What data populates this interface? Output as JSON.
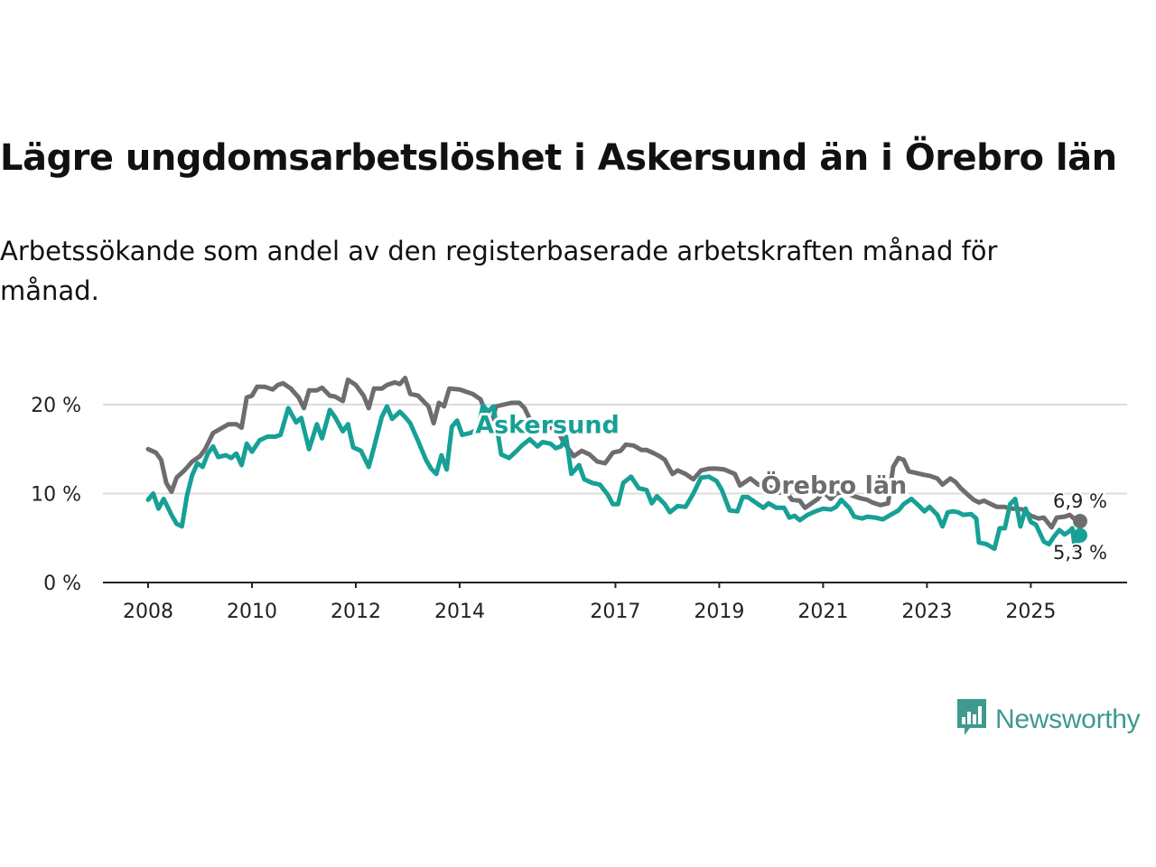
{
  "title": "Lägre ungdomsarbetslöshet i Askersund än i Örebro län",
  "subtitle": "Arbetssökande som andel av den registerbaserade arbetskraften månad för månad.",
  "brand": {
    "name": "Newsworthy",
    "color": "#3d9a8d",
    "icon": "newsworthy-chart-icon"
  },
  "chart_data": {
    "type": "line",
    "title": "Lägre ungdomsarbetslöshet i Askersund än i Örebro län",
    "xlabel": "",
    "ylabel": "",
    "xlim": [
      2008,
      2025.95
    ],
    "ylim": [
      0,
      20
    ],
    "grid": true,
    "y_ticks": [
      {
        "value": 0,
        "label": "0 %"
      },
      {
        "value": 10,
        "label": "10 %"
      },
      {
        "value": 20,
        "label": "20 %"
      }
    ],
    "x_ticks": [
      {
        "value": 2008,
        "label": "2008"
      },
      {
        "value": 2010,
        "label": "2010"
      },
      {
        "value": 2012,
        "label": "2012"
      },
      {
        "value": 2014,
        "label": "2014"
      },
      {
        "value": 2017,
        "label": "2017"
      },
      {
        "value": 2019,
        "label": "2019"
      },
      {
        "value": 2021,
        "label": "2021"
      },
      {
        "value": 2023,
        "label": "2023"
      },
      {
        "value": 2025,
        "label": "2025"
      }
    ],
    "series": [
      {
        "name": "Örebro län",
        "color": "#6d6d70",
        "label_x": 2019.8,
        "label_y": 10,
        "end_label": "6,9 %",
        "points": [
          [
            2008.0,
            15.0
          ],
          [
            2008.15,
            14.6
          ],
          [
            2008.25,
            13.8
          ],
          [
            2008.35,
            11.2
          ],
          [
            2008.45,
            10.2
          ],
          [
            2008.55,
            11.8
          ],
          [
            2008.7,
            12.6
          ],
          [
            2008.85,
            13.6
          ],
          [
            2009.0,
            14.2
          ],
          [
            2009.1,
            15.0
          ],
          [
            2009.25,
            16.8
          ],
          [
            2009.4,
            17.3
          ],
          [
            2009.55,
            17.8
          ],
          [
            2009.7,
            17.8
          ],
          [
            2009.8,
            17.4
          ],
          [
            2009.9,
            20.8
          ],
          [
            2010.0,
            21.0
          ],
          [
            2010.1,
            22.0
          ],
          [
            2010.25,
            22.0
          ],
          [
            2010.4,
            21.7
          ],
          [
            2010.5,
            22.2
          ],
          [
            2010.6,
            22.4
          ],
          [
            2010.75,
            21.8
          ],
          [
            2010.9,
            20.8
          ],
          [
            2011.0,
            19.6
          ],
          [
            2011.1,
            21.6
          ],
          [
            2011.25,
            21.6
          ],
          [
            2011.35,
            21.9
          ],
          [
            2011.5,
            21.0
          ],
          [
            2011.6,
            20.9
          ],
          [
            2011.75,
            20.4
          ],
          [
            2011.85,
            22.8
          ],
          [
            2012.0,
            22.2
          ],
          [
            2012.15,
            21.0
          ],
          [
            2012.25,
            19.6
          ],
          [
            2012.35,
            21.8
          ],
          [
            2012.5,
            21.8
          ],
          [
            2012.6,
            22.2
          ],
          [
            2012.75,
            22.5
          ],
          [
            2012.85,
            22.3
          ],
          [
            2012.95,
            23.0
          ],
          [
            2013.05,
            21.2
          ],
          [
            2013.2,
            21.0
          ],
          [
            2013.3,
            20.4
          ],
          [
            2013.4,
            19.8
          ],
          [
            2013.5,
            17.9
          ],
          [
            2013.6,
            20.2
          ],
          [
            2013.7,
            19.8
          ],
          [
            2013.8,
            21.8
          ],
          [
            2014.0,
            21.7
          ],
          [
            2014.15,
            21.4
          ],
          [
            2014.25,
            21.2
          ],
          [
            2014.4,
            20.6
          ],
          [
            2014.5,
            19.2
          ],
          [
            2014.6,
            17.6
          ],
          [
            2014.7,
            19.8
          ],
          [
            2014.85,
            20.0
          ],
          [
            2015.0,
            20.2
          ],
          [
            2015.15,
            20.2
          ],
          [
            2015.25,
            19.6
          ],
          [
            2015.35,
            18.4
          ],
          [
            2015.5,
            18.0
          ],
          [
            2015.7,
            17.6
          ],
          [
            2015.9,
            16.9
          ],
          [
            2016.0,
            15.8
          ],
          [
            2016.2,
            14.2
          ],
          [
            2016.35,
            14.8
          ],
          [
            2016.5,
            14.4
          ],
          [
            2016.65,
            13.6
          ],
          [
            2016.8,
            13.4
          ],
          [
            2016.95,
            14.6
          ],
          [
            2017.1,
            14.8
          ],
          [
            2017.2,
            15.5
          ],
          [
            2017.35,
            15.4
          ],
          [
            2017.5,
            14.9
          ],
          [
            2017.6,
            14.9
          ],
          [
            2017.75,
            14.5
          ],
          [
            2017.85,
            14.2
          ],
          [
            2017.95,
            13.8
          ],
          [
            2018.1,
            12.2
          ],
          [
            2018.2,
            12.6
          ],
          [
            2018.35,
            12.2
          ],
          [
            2018.5,
            11.6
          ],
          [
            2018.65,
            12.6
          ],
          [
            2018.8,
            12.8
          ],
          [
            2018.95,
            12.8
          ],
          [
            2019.1,
            12.7
          ],
          [
            2019.3,
            12.2
          ],
          [
            2019.4,
            10.9
          ],
          [
            2019.5,
            11.3
          ],
          [
            2019.6,
            11.7
          ],
          [
            2019.75,
            11.0
          ],
          [
            2019.9,
            10.8
          ],
          [
            2020.05,
            10.6
          ],
          [
            2020.15,
            10.1
          ],
          [
            2020.3,
            10.1
          ],
          [
            2020.4,
            9.3
          ],
          [
            2020.55,
            9.2
          ],
          [
            2020.65,
            8.4
          ],
          [
            2020.8,
            9.0
          ],
          [
            2020.9,
            9.4
          ],
          [
            2021.0,
            10.2
          ],
          [
            2021.15,
            9.4
          ],
          [
            2021.25,
            10.0
          ],
          [
            2021.4,
            10.2
          ],
          [
            2021.55,
            9.8
          ],
          [
            2021.7,
            9.5
          ],
          [
            2021.85,
            9.3
          ],
          [
            2021.95,
            9.0
          ],
          [
            2022.1,
            8.7
          ],
          [
            2022.25,
            8.9
          ],
          [
            2022.35,
            13.0
          ],
          [
            2022.45,
            14.0
          ],
          [
            2022.55,
            13.8
          ],
          [
            2022.65,
            12.5
          ],
          [
            2022.8,
            12.3
          ],
          [
            2022.95,
            12.1
          ],
          [
            2023.05,
            12.0
          ],
          [
            2023.2,
            11.7
          ],
          [
            2023.3,
            11.0
          ],
          [
            2023.45,
            11.7
          ],
          [
            2023.55,
            11.3
          ],
          [
            2023.65,
            10.6
          ],
          [
            2023.8,
            9.8
          ],
          [
            2023.9,
            9.3
          ],
          [
            2024.0,
            9.0
          ],
          [
            2024.1,
            9.2
          ],
          [
            2024.2,
            8.9
          ],
          [
            2024.35,
            8.5
          ],
          [
            2024.5,
            8.5
          ],
          [
            2024.6,
            8.3
          ],
          [
            2024.7,
            8.3
          ],
          [
            2024.85,
            8.2
          ],
          [
            2025.0,
            7.5
          ],
          [
            2025.15,
            7.2
          ],
          [
            2025.25,
            7.3
          ],
          [
            2025.4,
            6.2
          ],
          [
            2025.5,
            7.3
          ],
          [
            2025.65,
            7.4
          ],
          [
            2025.75,
            7.6
          ],
          [
            2025.85,
            7.1
          ],
          [
            2025.95,
            6.9
          ]
        ]
      },
      {
        "name": "Askersund",
        "color": "#17a096",
        "label_x": 2014.3,
        "label_y": 16.8,
        "end_label": "5,3 %",
        "points": [
          [
            2008.0,
            9.3
          ],
          [
            2008.1,
            10.0
          ],
          [
            2008.2,
            8.3
          ],
          [
            2008.3,
            9.4
          ],
          [
            2008.45,
            7.6
          ],
          [
            2008.55,
            6.6
          ],
          [
            2008.65,
            6.3
          ],
          [
            2008.75,
            9.8
          ],
          [
            2008.85,
            12.1
          ],
          [
            2008.95,
            13.4
          ],
          [
            2009.05,
            13.0
          ],
          [
            2009.15,
            14.5
          ],
          [
            2009.25,
            15.3
          ],
          [
            2009.35,
            14.1
          ],
          [
            2009.5,
            14.3
          ],
          [
            2009.6,
            14.0
          ],
          [
            2009.7,
            14.5
          ],
          [
            2009.8,
            13.2
          ],
          [
            2009.9,
            15.6
          ],
          [
            2010.0,
            14.7
          ],
          [
            2010.15,
            16.0
          ],
          [
            2010.3,
            16.4
          ],
          [
            2010.45,
            16.4
          ],
          [
            2010.55,
            16.6
          ],
          [
            2010.7,
            19.6
          ],
          [
            2010.85,
            18.0
          ],
          [
            2010.95,
            18.5
          ],
          [
            2011.1,
            15.0
          ],
          [
            2011.25,
            17.8
          ],
          [
            2011.35,
            16.2
          ],
          [
            2011.5,
            19.4
          ],
          [
            2011.6,
            18.6
          ],
          [
            2011.75,
            17.0
          ],
          [
            2011.85,
            17.8
          ],
          [
            2011.95,
            15.2
          ],
          [
            2012.1,
            14.8
          ],
          [
            2012.25,
            13.0
          ],
          [
            2012.35,
            15.2
          ],
          [
            2012.5,
            18.6
          ],
          [
            2012.6,
            19.8
          ],
          [
            2012.7,
            18.4
          ],
          [
            2012.85,
            19.2
          ],
          [
            2012.95,
            18.6
          ],
          [
            2013.05,
            17.9
          ],
          [
            2013.2,
            15.9
          ],
          [
            2013.35,
            13.8
          ],
          [
            2013.45,
            12.8
          ],
          [
            2013.55,
            12.2
          ],
          [
            2013.65,
            14.3
          ],
          [
            2013.75,
            12.7
          ],
          [
            2013.85,
            17.5
          ],
          [
            2013.95,
            18.2
          ],
          [
            2014.05,
            16.6
          ],
          [
            2014.2,
            16.8
          ],
          [
            2014.35,
            17.2
          ],
          [
            2014.45,
            19.9
          ],
          [
            2014.55,
            19.2
          ],
          [
            2014.65,
            19.8
          ],
          [
            2014.8,
            14.4
          ],
          [
            2014.95,
            14.0
          ],
          [
            2015.1,
            14.8
          ],
          [
            2015.2,
            15.4
          ],
          [
            2015.35,
            16.1
          ],
          [
            2015.5,
            15.3
          ],
          [
            2015.6,
            15.8
          ],
          [
            2015.75,
            15.6
          ],
          [
            2015.85,
            15.1
          ],
          [
            2015.95,
            15.3
          ],
          [
            2016.05,
            16.4
          ],
          [
            2016.15,
            12.2
          ],
          [
            2016.3,
            13.2
          ],
          [
            2016.4,
            11.6
          ],
          [
            2016.55,
            11.2
          ],
          [
            2016.7,
            11.0
          ],
          [
            2016.85,
            9.9
          ],
          [
            2016.95,
            8.8
          ],
          [
            2017.05,
            8.8
          ],
          [
            2017.15,
            11.2
          ],
          [
            2017.3,
            11.9
          ],
          [
            2017.45,
            10.6
          ],
          [
            2017.6,
            10.4
          ],
          [
            2017.7,
            8.9
          ],
          [
            2017.8,
            9.7
          ],
          [
            2017.95,
            8.8
          ],
          [
            2018.05,
            7.9
          ],
          [
            2018.2,
            8.6
          ],
          [
            2018.35,
            8.5
          ],
          [
            2018.5,
            10.0
          ],
          [
            2018.65,
            11.8
          ],
          [
            2018.8,
            11.9
          ],
          [
            2018.95,
            11.4
          ],
          [
            2019.05,
            10.4
          ],
          [
            2019.2,
            8.1
          ],
          [
            2019.35,
            8.0
          ],
          [
            2019.45,
            9.6
          ],
          [
            2019.55,
            9.6
          ],
          [
            2019.7,
            9.0
          ],
          [
            2019.85,
            8.4
          ],
          [
            2019.95,
            8.9
          ],
          [
            2020.1,
            8.4
          ],
          [
            2020.25,
            8.4
          ],
          [
            2020.35,
            7.3
          ],
          [
            2020.45,
            7.5
          ],
          [
            2020.55,
            7.0
          ],
          [
            2020.7,
            7.6
          ],
          [
            2020.85,
            8.0
          ],
          [
            2021.0,
            8.3
          ],
          [
            2021.15,
            8.2
          ],
          [
            2021.25,
            8.5
          ],
          [
            2021.35,
            9.3
          ],
          [
            2021.5,
            8.4
          ],
          [
            2021.6,
            7.4
          ],
          [
            2021.75,
            7.2
          ],
          [
            2021.85,
            7.4
          ],
          [
            2022.0,
            7.3
          ],
          [
            2022.15,
            7.1
          ],
          [
            2022.3,
            7.6
          ],
          [
            2022.45,
            8.1
          ],
          [
            2022.55,
            8.8
          ],
          [
            2022.7,
            9.4
          ],
          [
            2022.85,
            8.6
          ],
          [
            2022.95,
            8.0
          ],
          [
            2023.05,
            8.5
          ],
          [
            2023.2,
            7.6
          ],
          [
            2023.3,
            6.3
          ],
          [
            2023.4,
            7.9
          ],
          [
            2023.5,
            8.0
          ],
          [
            2023.6,
            7.9
          ],
          [
            2023.7,
            7.6
          ],
          [
            2023.85,
            7.7
          ],
          [
            2023.95,
            7.2
          ],
          [
            2024.0,
            4.5
          ],
          [
            2024.15,
            4.3
          ],
          [
            2024.3,
            3.8
          ],
          [
            2024.4,
            6.1
          ],
          [
            2024.5,
            6.1
          ],
          [
            2024.6,
            8.8
          ],
          [
            2024.7,
            9.4
          ],
          [
            2024.8,
            6.3
          ],
          [
            2024.9,
            8.3
          ],
          [
            2025.0,
            6.8
          ],
          [
            2025.1,
            6.5
          ],
          [
            2025.25,
            4.6
          ],
          [
            2025.35,
            4.3
          ],
          [
            2025.45,
            5.2
          ],
          [
            2025.55,
            5.9
          ],
          [
            2025.65,
            5.4
          ],
          [
            2025.75,
            5.8
          ],
          [
            2025.8,
            6.1
          ],
          [
            2025.85,
            3.7
          ],
          [
            2025.9,
            4.6
          ],
          [
            2025.95,
            5.3
          ]
        ]
      }
    ]
  }
}
